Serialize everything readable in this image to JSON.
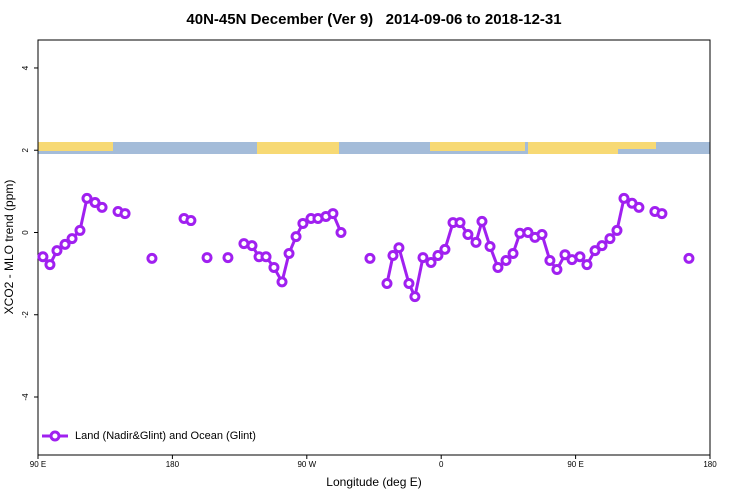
{
  "chart_data": {
    "type": "line",
    "title": "40N-45N December (Ver 9)   2014-09-06 to 2018-12-31",
    "xlabel": "Longitude (deg E)",
    "ylabel": "XCO2 - MLO trend (ppm)",
    "xlim": [
      90,
      540
    ],
    "ylim": [
      -5.41,
      4.68
    ],
    "xticks": [
      {
        "value": 90,
        "label": "90 E"
      },
      {
        "value": 180,
        "label": "180"
      },
      {
        "value": 270,
        "label": "90 W"
      },
      {
        "value": 360,
        "label": "0"
      },
      {
        "value": 450,
        "label": "90 E"
      },
      {
        "value": 540,
        "label": "180"
      }
    ],
    "yticks": [
      4,
      2,
      0,
      -2,
      -4
    ],
    "legend": "lower left",
    "x": [
      93.3,
      98.0,
      102.7,
      108.1,
      112.8,
      118.1,
      122.8,
      128.2,
      132.9,
      138.2,
      143.6,
      148.3,
      157.0,
      166.3,
      177.0,
      187.8,
      192.4,
      197.8,
      203.2,
      210.5,
      217.2,
      222.6,
      227.9,
      233.3,
      238.0,
      242.7,
      248.0,
      253.4,
      258.1,
      262.8,
      267.4,
      272.8,
      277.5,
      282.8,
      287.5,
      292.9,
      302.3,
      312.3,
      317.7,
      323.7,
      327.7,
      331.7,
      338.4,
      342.4,
      347.8,
      353.2,
      357.8,
      362.5,
      367.9,
      372.6,
      377.9,
      383.3,
      387.3,
      392.7,
      398.0,
      403.4,
      408.1,
      412.7,
      418.1,
      422.8,
      427.5,
      432.8,
      437.5,
      442.9,
      447.6,
      452.9,
      457.6,
      463.0,
      467.7,
      473.0,
      477.7,
      482.4,
      487.8,
      492.4,
      497.8,
      503.1,
      507.8,
      516.5,
      525.9
    ],
    "series": [
      {
        "name": "Land (Nadir&Glint) and Ocean (Glint)",
        "color": "#a020f0",
        "values": [
          -0.59,
          -0.78,
          -0.44,
          -0.29,
          -0.15,
          0.05,
          0.83,
          0.73,
          0.61,
          null,
          0.51,
          0.46,
          null,
          -0.63,
          null,
          0.34,
          0.29,
          null,
          -0.61,
          null,
          -0.61,
          null,
          -0.27,
          -0.32,
          -0.59,
          -0.59,
          -0.85,
          -1.2,
          -0.51,
          -0.1,
          0.22,
          0.34,
          0.34,
          0.39,
          0.46,
          0,
          null,
          -0.63,
          null,
          -1.24,
          -0.56,
          -0.37,
          -1.24,
          -1.56,
          -0.61,
          -0.73,
          -0.56,
          -0.41,
          0.24,
          0.24,
          -0.05,
          -0.24,
          0.27,
          -0.34,
          -0.85,
          -0.68,
          -0.51,
          -0.02,
          0,
          -0.12,
          -0.05,
          -0.68,
          -0.9,
          -0.54,
          -0.66,
          -0.59,
          -0.78,
          -0.44,
          -0.32,
          -0.15,
          0.05,
          0.83,
          0.71,
          0.61,
          null,
          0.51,
          0.46,
          null,
          -0.63
        ]
      }
    ]
  }
}
